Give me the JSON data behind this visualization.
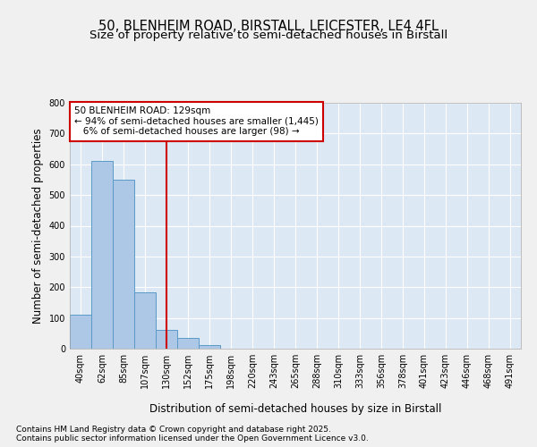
{
  "title_line1": "50, BLENHEIM ROAD, BIRSTALL, LEICESTER, LE4 4FL",
  "title_line2": "Size of property relative to semi-detached houses in Birstall",
  "xlabel": "Distribution of semi-detached houses by size in Birstall",
  "ylabel": "Number of semi-detached properties",
  "bar_color": "#adc8e6",
  "bar_edge_color": "#5a9ac8",
  "background_color": "#dde8f5",
  "fig_background_color": "#f0f0f0",
  "categories": [
    "40sqm",
    "62sqm",
    "85sqm",
    "107sqm",
    "130sqm",
    "152sqm",
    "175sqm",
    "198sqm",
    "220sqm",
    "243sqm",
    "265sqm",
    "288sqm",
    "310sqm",
    "333sqm",
    "356sqm",
    "378sqm",
    "401sqm",
    "423sqm",
    "446sqm",
    "468sqm",
    "491sqm"
  ],
  "values": [
    110,
    612,
    549,
    184,
    60,
    35,
    12,
    0,
    0,
    0,
    0,
    0,
    0,
    0,
    0,
    0,
    0,
    0,
    0,
    0,
    0
  ],
  "ylim": [
    0,
    800
  ],
  "yticks": [
    0,
    100,
    200,
    300,
    400,
    500,
    600,
    700,
    800
  ],
  "vline_x": 4.0,
  "vline_color": "#cc0000",
  "annotation_text": "50 BLENHEIM ROAD: 129sqm\n← 94% of semi-detached houses are smaller (1,445)\n   6% of semi-detached houses are larger (98) →",
  "annotation_box_color": "#cc0000",
  "footer_text": "Contains HM Land Registry data © Crown copyright and database right 2025.\nContains public sector information licensed under the Open Government Licence v3.0.",
  "grid_color": "#ffffff",
  "title_fontsize": 10.5,
  "subtitle_fontsize": 9.5,
  "tick_fontsize": 7,
  "label_fontsize": 8.5,
  "footer_fontsize": 6.5
}
